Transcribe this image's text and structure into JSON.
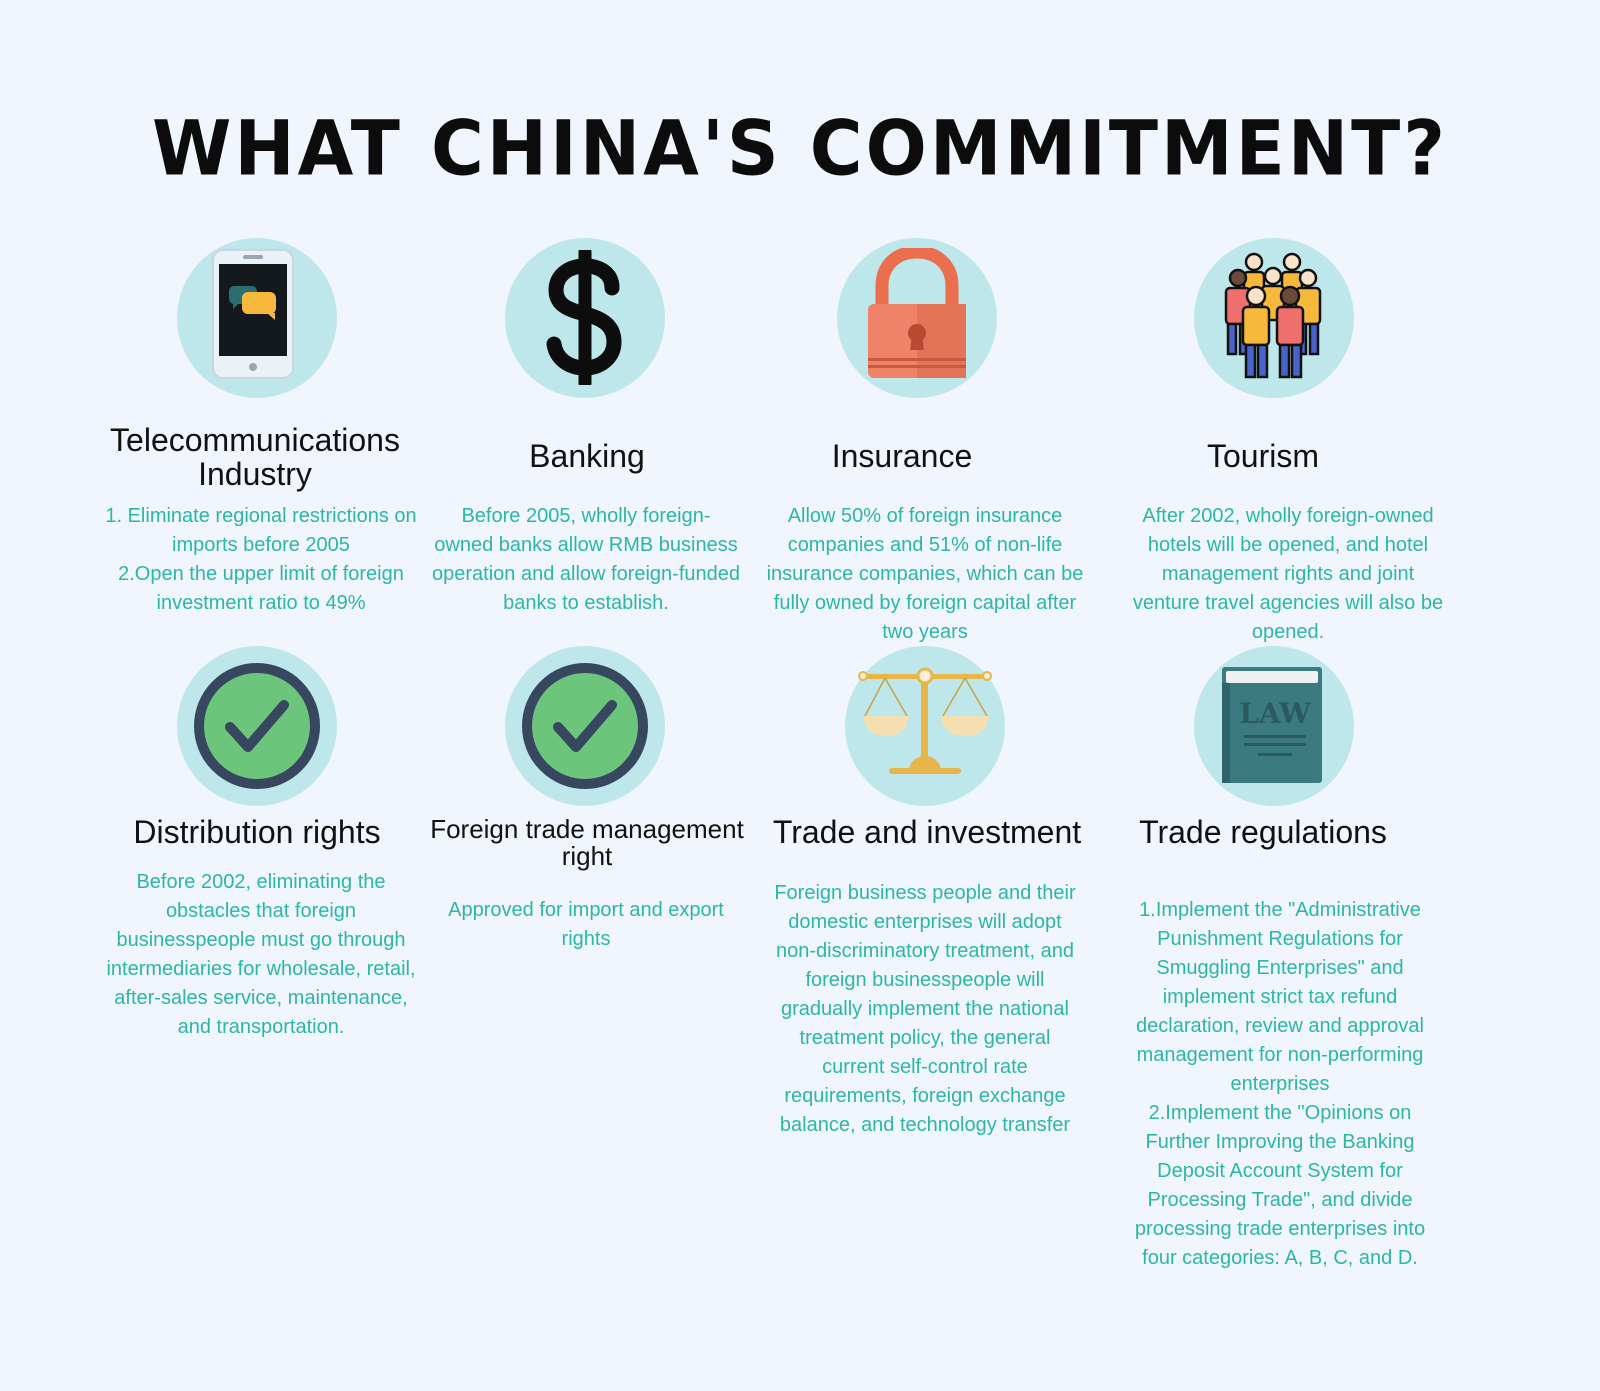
{
  "title": "WHAT CHINA'S COMMITMENT?",
  "colors": {
    "background": "#f1f5fe",
    "circle": "#bde7ea",
    "description_text": "#2bb7a6",
    "heading_text": "#111111"
  },
  "items": [
    {
      "icon": "smartphone-chat-icon",
      "heading": "Telecommunications\nIndustry",
      "text": "1. Eliminate regional restrictions on\nimports before 2005\n2.Open the upper limit of foreign\ninvestment ratio to 49%"
    },
    {
      "icon": "dollar-icon",
      "heading": "Banking",
      "text": "Before 2005, wholly foreign-\nowned banks allow RMB business\noperation and allow foreign-funded\nbanks to establish."
    },
    {
      "icon": "padlock-icon",
      "heading": "Insurance",
      "text": "Allow 50% of foreign insurance\ncompanies and 51% of non-life\ninsurance companies, which can be\nfully owned by foreign capital after\ntwo years"
    },
    {
      "icon": "people-group-icon",
      "heading": "Tourism",
      "text": "After 2002, wholly foreign-owned\nhotels will be opened, and hotel\nmanagement rights and joint\nventure travel agencies will also be\nopened."
    },
    {
      "icon": "checkmark-icon",
      "heading": "Distribution rights",
      "text": "Before 2002, eliminating the\nobstacles that foreign\nbusinesspeople must go through\nintermediaries for wholesale, retail,\nafter-sales service, maintenance,\nand transportation."
    },
    {
      "icon": "checkmark-icon",
      "heading": "Foreign trade management\nright",
      "text": "Approved for import and export\nrights"
    },
    {
      "icon": "balance-scale-icon",
      "heading": "Trade and investment",
      "text": "Foreign business people and their\ndomestic enterprises will adopt\nnon-discriminatory treatment, and\nforeign businesspeople will\ngradually implement the national\ntreatment policy, the general\ncurrent self-control rate\nrequirements, foreign exchange\nbalance, and technology transfer"
    },
    {
      "icon": "law-book-icon",
      "heading": "Trade regulations",
      "book_label": "LAW",
      "text": "1.Implement the \"Administrative\nPunishment Regulations for\nSmuggling Enterprises\" and\nimplement strict tax refund\ndeclaration, review and approval\nmanagement for non-performing\nenterprises\n2.Implement the \"Opinions on\nFurther Improving the Banking\nDeposit Account System for\nProcessing Trade\", and divide\nprocessing trade enterprises into\nfour categories: A, B, C, and D."
    }
  ]
}
